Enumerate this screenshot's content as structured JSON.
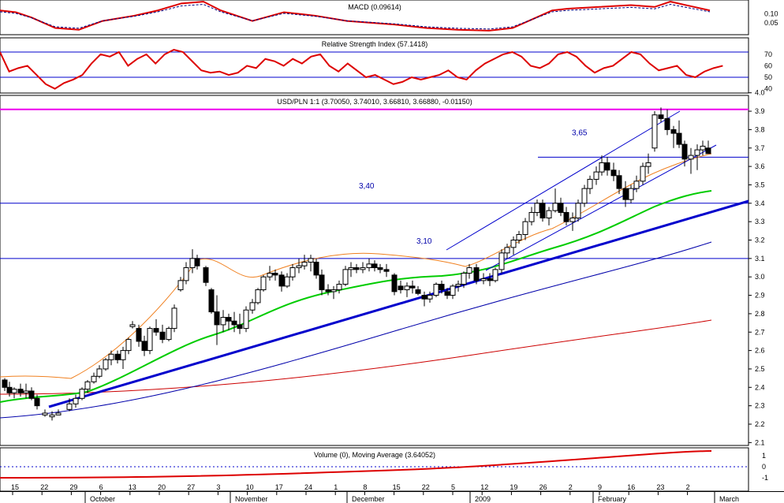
{
  "chart_data": {
    "type": "candlestick",
    "macd": {
      "title": "MACD (0.09614)",
      "yticks": [
        0.1,
        0.05
      ],
      "ylim": [
        0.0,
        0.18
      ]
    },
    "rsi": {
      "title": "Relative Strength Index (57.1418)",
      "yticks": [
        70,
        60,
        50,
        40
      ],
      "ylim": [
        37,
        79
      ],
      "bands": [
        72,
        50
      ]
    },
    "price": {
      "title": "USD/PLN 1:1 (3.70050, 3.74010, 3.66810, 3.66880, -0.01150)",
      "yticks": [
        4.0,
        3.9,
        3.8,
        3.7,
        3.6,
        3.5,
        3.4,
        3.3,
        3.2,
        3.1,
        3.0,
        2.9,
        2.8,
        2.7,
        2.6,
        2.5,
        2.4,
        2.3,
        2.2,
        2.1
      ],
      "ylim": [
        2.03,
        4.08
      ],
      "levels": [
        {
          "value": 3.65,
          "label": "3,65"
        },
        {
          "value": 3.4,
          "label": "3,40"
        },
        {
          "value": 3.1,
          "label": "3,10"
        }
      ],
      "resistance": 3.91
    },
    "volume": {
      "title": "Volume (0), Moving Average (3.64052)",
      "yticks": [
        "1",
        "0",
        "-1"
      ],
      "ylim": [
        -1.4,
        1.4
      ]
    },
    "x_ticks": [
      "15",
      "22",
      "29",
      "6",
      "13",
      "20",
      "27",
      "3",
      "10",
      "17",
      "24",
      "1",
      "8",
      "15",
      "22",
      "5",
      "12",
      "19",
      "26",
      "2",
      "9",
      "16",
      "23",
      "2"
    ],
    "months": [
      "October",
      "November",
      "December",
      "2009",
      "February",
      "March"
    ],
    "colors": {
      "macd": "#dd0000",
      "signal": "#000080",
      "rsi": "#dd0000",
      "ma_short": "#f08020",
      "ma_mid": "#00cc00",
      "ma_long1": "#0000aa",
      "ma_long2": "#cc0000",
      "trend": "#0000cc",
      "resistance": "#ee00ee",
      "level": "#0000cc"
    }
  }
}
